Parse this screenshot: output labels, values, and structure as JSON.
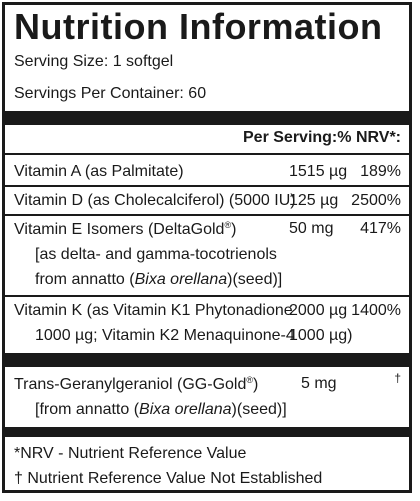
{
  "title": "Nutrition Information",
  "serving_size": "Serving Size: 1 softgel",
  "servings_per_container": "Servings Per Container: 60",
  "header": {
    "per_serving": "Per Serving:",
    "nrv": "% NRV*:"
  },
  "rows": [
    {
      "name": "Vitamin A (as Palmitate)",
      "amount": "1515 µg",
      "nrv": "189%"
    },
    {
      "name": "Vitamin D (as Cholecalciferol) (5000 IU)",
      "amount": "125 µg",
      "nrv": "2500%"
    },
    {
      "name_main": "Vitamin E Isomers (DeltaGold",
      "name_reg": "®",
      "name_close": ")",
      "detail1": "[as delta- and gamma-tocotrienols",
      "detail2_pre": "from annatto (",
      "detail2_italic": "Bixa orellana",
      "detail2_post": ")(seed)]",
      "amount": "50 mg",
      "nrv": "417%"
    },
    {
      "name": "Vitamin K (as Vitamin K1 Phytonadione",
      "amount": "2000 µg",
      "nrv": "1400%",
      "detail1": "1000 µg; Vitamin K2 Menaquinone-4",
      "amount2": "1000 µg)"
    },
    {
      "name_main": "Trans-Geranylgeraniol (GG-Gold",
      "name_reg": "®",
      "name_close": ")",
      "detail1_pre": "[from annatto (",
      "detail1_italic": "Bixa orellana",
      "detail1_post": ")(seed)]",
      "amount": "5 mg",
      "nrv": "†"
    }
  ],
  "footnotes": {
    "nrv": "*NRV - Nutrient Reference Value",
    "dagger": "† Nutrient Reference Value Not Established"
  }
}
